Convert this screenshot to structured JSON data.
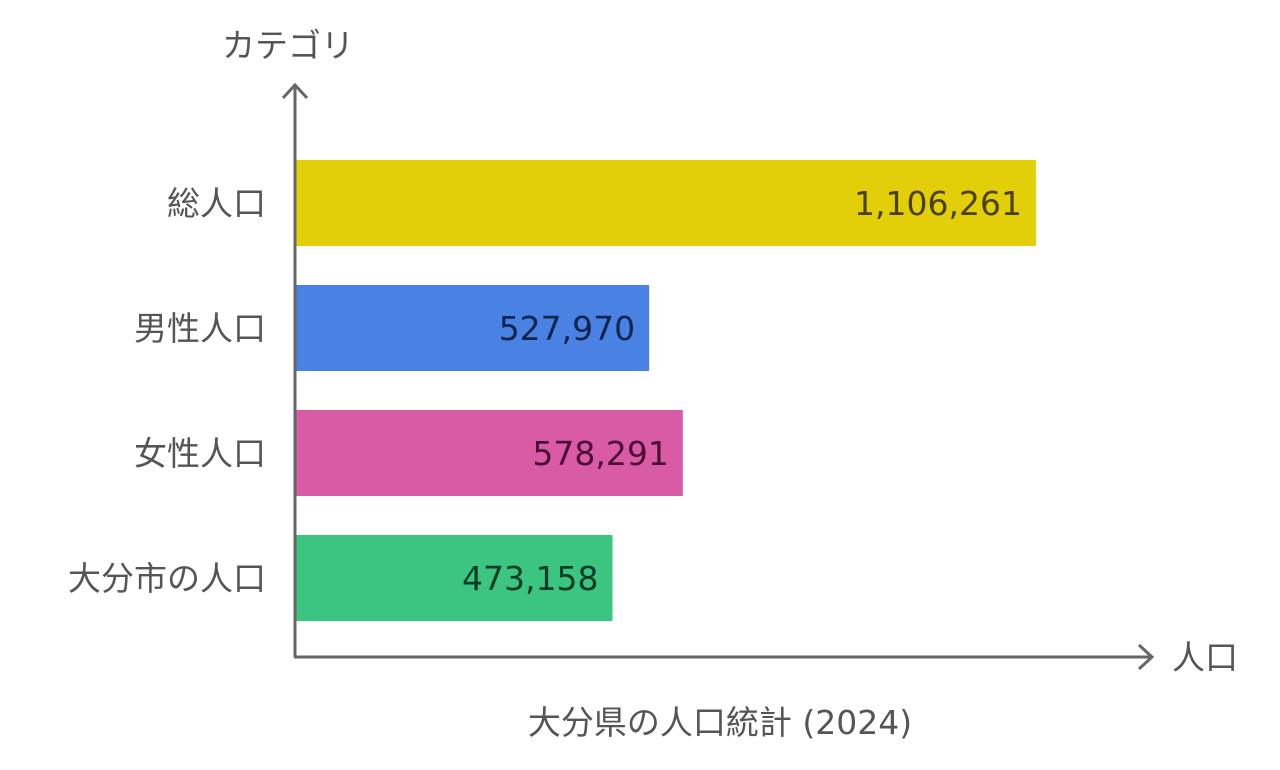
{
  "chart_data": {
    "type": "bar",
    "orientation": "horizontal",
    "title": "大分県の人口統計 (2024)",
    "xlabel": "人口",
    "ylabel": "カテゴリ",
    "categories": [
      "総人口",
      "男性人口",
      "女性人口",
      "大分市の人口"
    ],
    "values": [
      1106261,
      527970,
      578291,
      473158
    ],
    "value_labels": [
      "1,106,261",
      "527,970",
      "578,291",
      "473,158"
    ],
    "colors": [
      "#E2CF0A",
      "#4A82E3",
      "#D95BA5",
      "#3CC481"
    ],
    "label_colors": [
      "#4a4000",
      "#0f2550",
      "#4a0f33",
      "#0d3d24"
    ],
    "xlim": [
      0,
      1106261
    ],
    "grid": false,
    "legend": "none"
  }
}
